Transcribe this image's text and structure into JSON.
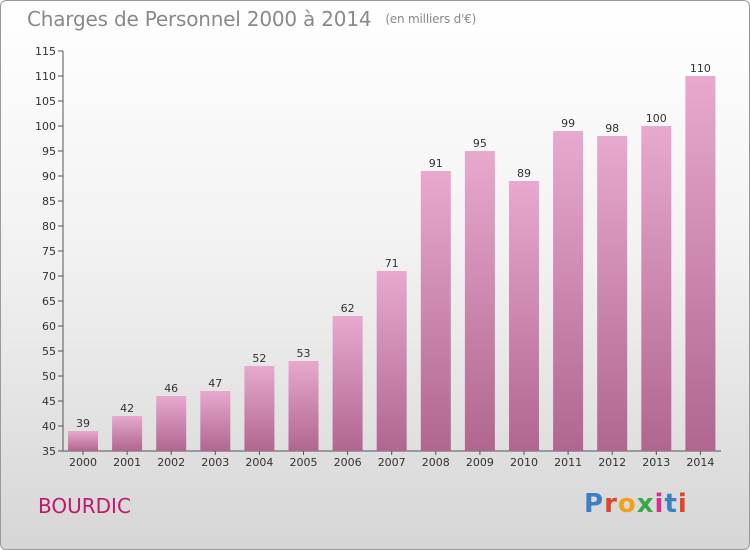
{
  "header": {
    "title": "Charges de Personnel 2000 à 2014",
    "unit": "(en milliers d'€)"
  },
  "footer": {
    "commune": "BOURDIC",
    "brand_letters": [
      "P",
      "r",
      "o",
      "x",
      "i",
      "t",
      "i"
    ]
  },
  "colors": {
    "bar_top": "#e8a9cf",
    "bar_bottom": "#b0668f",
    "commune_text": "#c2186b",
    "title_text": "#8a8a8a",
    "logo": [
      "#3b7fc4",
      "#e0452c",
      "#f0a21a",
      "#3aa84a",
      "#d92e8a",
      "#3b7fc4",
      "#e0452c"
    ]
  },
  "chart_data": {
    "type": "bar",
    "title": "Charges de Personnel 2000 à 2014",
    "subtitle": "(en milliers d'€)",
    "xlabel": "",
    "ylabel": "",
    "categories": [
      "2000",
      "2001",
      "2002",
      "2003",
      "2004",
      "2005",
      "2006",
      "2007",
      "2008",
      "2009",
      "2010",
      "2011",
      "2012",
      "2013",
      "2014"
    ],
    "values": [
      39,
      42,
      46,
      47,
      52,
      53,
      62,
      71,
      91,
      95,
      89,
      99,
      98,
      100,
      110
    ],
    "ylim": [
      35,
      115
    ],
    "yticks": [
      35,
      40,
      45,
      50,
      55,
      60,
      65,
      70,
      75,
      80,
      85,
      90,
      95,
      100,
      105,
      110,
      115
    ],
    "grid": false,
    "legend": "none",
    "data_labels": true
  }
}
